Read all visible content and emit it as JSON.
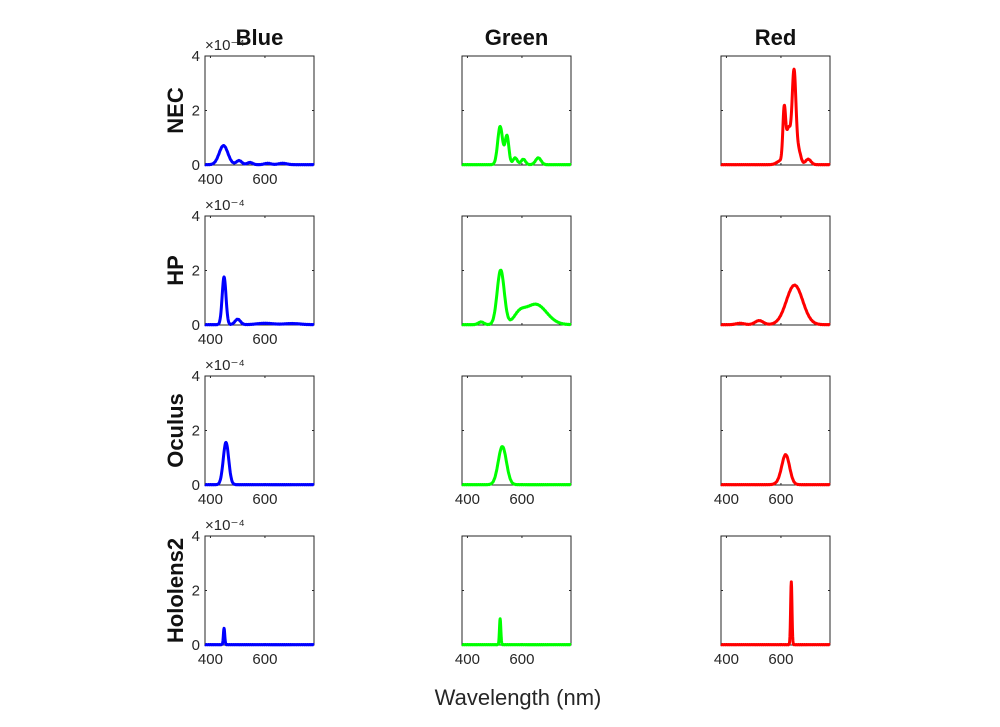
{
  "chart_data": {
    "type": "line",
    "layout": "small-multiples-4x3",
    "columns": [
      "Blue",
      "Green",
      "Red"
    ],
    "rows": [
      "NEC",
      "HP",
      "Oculus",
      "Hololens2"
    ],
    "xlabel": "Wavelength (nm)",
    "xlim": [
      380,
      780
    ],
    "ylim": [
      0,
      4
    ],
    "y_exponent_label": "×10⁻⁴",
    "x_ticks": [
      400,
      600
    ],
    "x_tick_labels": [
      "400",
      "600"
    ],
    "y_ticks": [
      0,
      2,
      4
    ],
    "y_tick_labels": [
      "0",
      "2",
      "4"
    ],
    "colors": {
      "Blue": "#0000ff",
      "Green": "#00ff00",
      "Red": "#ff0000"
    },
    "panels": [
      {
        "row": "NEC",
        "column": "Blue",
        "peaks": [
          [
            448,
            0.7,
            16
          ],
          [
            505,
            0.15,
            10
          ],
          [
            545,
            0.08,
            10
          ],
          [
            610,
            0.05,
            12
          ],
          [
            665,
            0.05,
            15
          ]
        ]
      },
      {
        "row": "NEC",
        "column": "Green",
        "peaks": [
          [
            520,
            1.4,
            9
          ],
          [
            545,
            1.05,
            7
          ],
          [
            575,
            0.25,
            8
          ],
          [
            605,
            0.2,
            8
          ],
          [
            660,
            0.25,
            10
          ]
        ]
      },
      {
        "row": "NEC",
        "column": "Red",
        "peaks": [
          [
            600,
            0.15,
            14
          ],
          [
            612,
            1.9,
            5
          ],
          [
            628,
            1.3,
            8
          ],
          [
            648,
            3.4,
            7
          ],
          [
            665,
            0.5,
            8
          ],
          [
            700,
            0.2,
            10
          ]
        ]
      },
      {
        "row": "HP",
        "column": "Blue",
        "peaks": [
          [
            450,
            1.75,
            7
          ],
          [
            500,
            0.2,
            10
          ],
          [
            600,
            0.05,
            30
          ],
          [
            700,
            0.04,
            30
          ]
        ]
      },
      {
        "row": "HP",
        "column": "Green",
        "peaks": [
          [
            450,
            0.1,
            10
          ],
          [
            522,
            2.0,
            13
          ],
          [
            590,
            0.3,
            20
          ],
          [
            650,
            0.75,
            40
          ]
        ]
      },
      {
        "row": "HP",
        "column": "Red",
        "peaks": [
          [
            450,
            0.05,
            15
          ],
          [
            520,
            0.15,
            15
          ],
          [
            650,
            1.45,
            30
          ]
        ]
      },
      {
        "row": "Oculus",
        "column": "Blue",
        "peaks": [
          [
            457,
            1.55,
            10
          ]
        ]
      },
      {
        "row": "Oculus",
        "column": "Green",
        "peaks": [
          [
            528,
            1.4,
            15
          ]
        ]
      },
      {
        "row": "Oculus",
        "column": "Red",
        "peaks": [
          [
            618,
            1.05,
            14
          ],
          [
            600,
            0.1,
            15
          ]
        ]
      },
      {
        "row": "Hololens2",
        "column": "Blue",
        "peaks": [
          [
            450,
            0.6,
            2.5
          ]
        ]
      },
      {
        "row": "Hololens2",
        "column": "Green",
        "peaks": [
          [
            520,
            0.95,
            2.5
          ]
        ]
      },
      {
        "row": "Hololens2",
        "column": "Red",
        "peaks": [
          [
            638,
            2.3,
            2.5
          ]
        ]
      }
    ]
  }
}
